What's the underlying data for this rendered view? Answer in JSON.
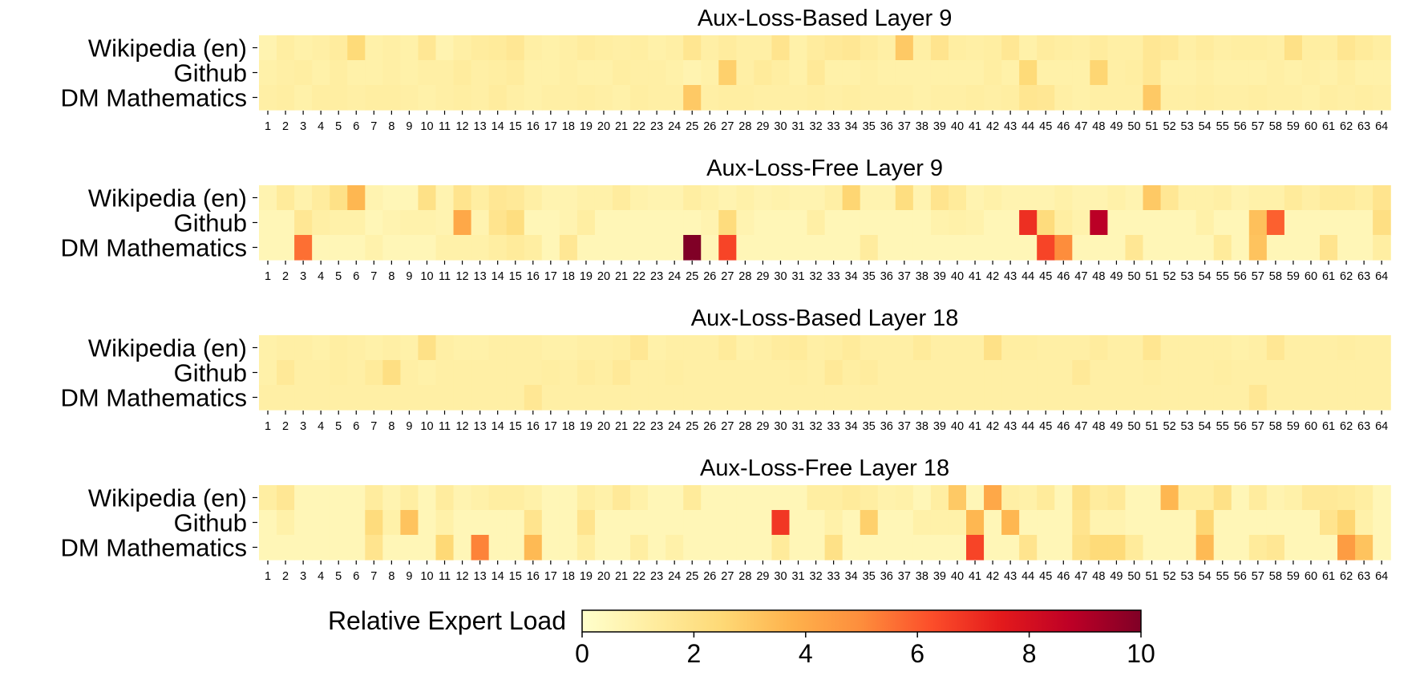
{
  "chart_data": [
    {
      "type": "heatmap",
      "title": "Aux-Loss-Based Layer 9",
      "rows": [
        "Wikipedia (en)",
        "Github",
        "DM Mathematics"
      ],
      "columns": [
        "1",
        "2",
        "3",
        "4",
        "5",
        "6",
        "7",
        "8",
        "9",
        "10",
        "11",
        "12",
        "13",
        "14",
        "15",
        "16",
        "17",
        "18",
        "19",
        "20",
        "21",
        "22",
        "23",
        "24",
        "25",
        "26",
        "27",
        "28",
        "29",
        "30",
        "31",
        "32",
        "33",
        "34",
        "35",
        "36",
        "37",
        "38",
        "39",
        "40",
        "41",
        "42",
        "43",
        "44",
        "45",
        "46",
        "47",
        "48",
        "49",
        "50",
        "51",
        "52",
        "53",
        "54",
        "55",
        "56",
        "57",
        "58",
        "59",
        "60",
        "61",
        "62",
        "63",
        "64"
      ],
      "values": [
        [
          0.8,
          1.2,
          1.0,
          1.1,
          1.3,
          2.4,
          1.0,
          1.1,
          1.0,
          1.6,
          0.8,
          1.1,
          1.3,
          1.4,
          1.6,
          1.1,
          1.0,
          1.1,
          1.3,
          1.2,
          1.1,
          1.2,
          1.0,
          1.1,
          1.7,
          1.1,
          1.3,
          1.1,
          1.1,
          1.8,
          1.0,
          1.3,
          1.5,
          1.6,
          1.3,
          1.1,
          3.0,
          1.1,
          1.8,
          1.2,
          1.1,
          1.2,
          1.6,
          1.0,
          1.3,
          1.2,
          1.1,
          1.3,
          1.1,
          1.1,
          1.6,
          1.5,
          1.1,
          1.3,
          1.1,
          1.2,
          1.2,
          1.1,
          2.0,
          1.2,
          1.2,
          1.7,
          1.4,
          1.2
        ],
        [
          1.0,
          1.1,
          1.2,
          1.0,
          1.2,
          1.0,
          1.0,
          1.1,
          1.0,
          1.1,
          1.1,
          1.3,
          1.1,
          1.2,
          1.3,
          1.0,
          1.0,
          1.1,
          1.0,
          1.0,
          1.2,
          1.1,
          1.1,
          1.0,
          0.8,
          1.0,
          2.8,
          1.1,
          1.4,
          1.2,
          1.0,
          1.5,
          1.0,
          1.0,
          1.1,
          1.0,
          1.0,
          1.0,
          1.0,
          1.0,
          1.0,
          1.2,
          1.0,
          2.4,
          1.0,
          1.0,
          1.0,
          2.6,
          1.1,
          1.2,
          1.6,
          1.0,
          1.0,
          1.1,
          1.0,
          1.0,
          1.0,
          1.1,
          1.0,
          1.1,
          1.0,
          1.2,
          1.0,
          1.0
        ],
        [
          1.1,
          1.2,
          1.0,
          1.2,
          1.2,
          1.1,
          1.2,
          1.2,
          1.1,
          1.0,
          1.1,
          1.2,
          1.1,
          1.3,
          1.1,
          1.0,
          1.1,
          1.1,
          1.2,
          1.1,
          1.0,
          1.2,
          1.1,
          1.1,
          3.0,
          1.1,
          1.2,
          1.2,
          1.1,
          1.1,
          1.1,
          1.2,
          1.1,
          1.2,
          1.1,
          1.1,
          1.1,
          1.0,
          1.1,
          1.1,
          1.2,
          1.1,
          1.2,
          1.7,
          1.6,
          1.1,
          1.0,
          1.1,
          1.1,
          1.1,
          3.0,
          1.1,
          1.1,
          1.2,
          1.1,
          1.1,
          1.2,
          1.1,
          1.1,
          1.0,
          1.2,
          1.1,
          1.2,
          1.1
        ]
      ],
      "xlabel": "",
      "ylabel": "",
      "color_range": [
        0,
        10
      ]
    },
    {
      "type": "heatmap",
      "title": "Aux-Loss-Free Layer 9",
      "rows": [
        "Wikipedia (en)",
        "Github",
        "DM Mathematics"
      ],
      "columns": [
        "1",
        "2",
        "3",
        "4",
        "5",
        "6",
        "7",
        "8",
        "9",
        "10",
        "11",
        "12",
        "13",
        "14",
        "15",
        "16",
        "17",
        "18",
        "19",
        "20",
        "21",
        "22",
        "23",
        "24",
        "25",
        "26",
        "27",
        "28",
        "29",
        "30",
        "31",
        "32",
        "33",
        "34",
        "35",
        "36",
        "37",
        "38",
        "39",
        "40",
        "41",
        "42",
        "43",
        "44",
        "45",
        "46",
        "47",
        "48",
        "49",
        "50",
        "51",
        "52",
        "53",
        "54",
        "55",
        "56",
        "57",
        "58",
        "59",
        "60",
        "61",
        "62",
        "63",
        "64"
      ],
      "values": [
        [
          0.8,
          1.4,
          0.9,
          1.3,
          2.0,
          3.6,
          0.8,
          0.6,
          0.6,
          2.0,
          0.8,
          1.8,
          1.2,
          1.6,
          1.5,
          1.1,
          0.8,
          0.8,
          1.0,
          1.0,
          1.3,
          0.9,
          0.8,
          0.8,
          1.2,
          1.0,
          0.8,
          1.0,
          0.8,
          0.9,
          0.8,
          0.8,
          1.1,
          2.6,
          0.8,
          0.8,
          2.2,
          0.8,
          1.8,
          1.4,
          0.8,
          1.0,
          0.8,
          0.8,
          0.8,
          1.0,
          0.8,
          0.8,
          1.0,
          0.8,
          3.0,
          1.6,
          1.0,
          1.0,
          1.1,
          0.8,
          1.0,
          1.0,
          1.4,
          1.1,
          1.4,
          1.4,
          1.2,
          1.8
        ],
        [
          0.6,
          0.6,
          1.6,
          1.1,
          1.0,
          1.0,
          0.6,
          0.8,
          0.9,
          0.9,
          0.8,
          4.1,
          0.8,
          1.8,
          2.2,
          0.6,
          0.6,
          0.8,
          1.2,
          0.6,
          0.6,
          0.6,
          0.6,
          0.6,
          0.6,
          0.8,
          2.3,
          0.8,
          0.6,
          0.6,
          0.6,
          1.1,
          0.6,
          0.6,
          0.6,
          0.6,
          0.6,
          0.6,
          0.9,
          1.0,
          0.9,
          0.6,
          0.6,
          7.0,
          2.3,
          1.2,
          0.9,
          8.8,
          0.6,
          0.6,
          0.6,
          0.6,
          0.6,
          1.0,
          0.6,
          0.6,
          3.3,
          5.9,
          0.6,
          0.6,
          0.6,
          0.6,
          0.6,
          2.1
        ],
        [
          0.6,
          0.6,
          5.6,
          0.6,
          0.6,
          0.6,
          0.9,
          0.6,
          0.6,
          0.6,
          1.0,
          1.0,
          1.0,
          1.2,
          1.4,
          1.2,
          0.6,
          1.6,
          0.6,
          0.6,
          0.6,
          0.6,
          0.6,
          0.6,
          10.0,
          0.6,
          6.5,
          0.6,
          0.6,
          0.6,
          0.6,
          0.6,
          0.6,
          0.6,
          1.3,
          0.6,
          0.6,
          0.6,
          0.6,
          0.6,
          0.6,
          0.6,
          0.6,
          0.6,
          6.5,
          5.0,
          0.6,
          0.6,
          0.6,
          1.6,
          0.6,
          0.6,
          0.6,
          0.6,
          1.4,
          0.6,
          3.2,
          0.6,
          0.6,
          0.6,
          1.8,
          0.6,
          0.6,
          1.2
        ]
      ],
      "xlabel": "",
      "ylabel": "",
      "color_range": [
        0,
        10
      ]
    },
    {
      "type": "heatmap",
      "title": "Aux-Loss-Based Layer 18",
      "rows": [
        "Wikipedia (en)",
        "Github",
        "DM Mathematics"
      ],
      "columns": [
        "1",
        "2",
        "3",
        "4",
        "5",
        "6",
        "7",
        "8",
        "9",
        "10",
        "11",
        "12",
        "13",
        "14",
        "15",
        "16",
        "17",
        "18",
        "19",
        "20",
        "21",
        "22",
        "23",
        "24",
        "25",
        "26",
        "27",
        "28",
        "29",
        "30",
        "31",
        "32",
        "33",
        "34",
        "35",
        "36",
        "37",
        "38",
        "39",
        "40",
        "41",
        "42",
        "43",
        "44",
        "45",
        "46",
        "47",
        "48",
        "49",
        "50",
        "51",
        "52",
        "53",
        "54",
        "55",
        "56",
        "57",
        "58",
        "59",
        "60",
        "61",
        "62",
        "63",
        "64"
      ],
      "values": [
        [
          1.0,
          1.1,
          1.1,
          1.0,
          1.2,
          1.1,
          1.0,
          1.1,
          1.0,
          2.0,
          1.1,
          1.0,
          1.0,
          1.1,
          1.1,
          1.1,
          1.0,
          1.0,
          1.1,
          1.1,
          1.2,
          1.6,
          1.0,
          1.1,
          1.1,
          1.1,
          1.4,
          1.0,
          1.1,
          1.3,
          1.4,
          1.1,
          1.2,
          1.4,
          1.1,
          1.1,
          1.1,
          1.4,
          1.1,
          1.1,
          1.1,
          2.0,
          1.2,
          1.2,
          1.1,
          1.1,
          1.1,
          1.3,
          1.1,
          1.1,
          1.7,
          1.1,
          1.1,
          1.1,
          1.1,
          1.0,
          1.1,
          1.6,
          1.1,
          1.1,
          1.1,
          1.2,
          1.1,
          1.1
        ],
        [
          1.0,
          1.5,
          1.1,
          1.1,
          1.2,
          1.1,
          1.4,
          2.1,
          1.1,
          1.0,
          1.1,
          1.1,
          1.1,
          1.1,
          1.1,
          1.1,
          1.2,
          1.1,
          1.3,
          1.2,
          1.5,
          1.1,
          1.1,
          1.2,
          1.1,
          1.1,
          1.1,
          1.1,
          1.1,
          1.1,
          1.2,
          1.1,
          1.5,
          1.2,
          1.3,
          1.1,
          1.1,
          1.1,
          1.1,
          1.1,
          1.1,
          1.1,
          1.1,
          1.1,
          1.1,
          1.1,
          1.5,
          1.1,
          1.1,
          1.1,
          1.2,
          1.1,
          1.1,
          1.1,
          1.2,
          1.1,
          1.1,
          1.1,
          1.1,
          1.1,
          1.1,
          1.1,
          1.1,
          1.1
        ],
        [
          1.1,
          1.1,
          1.1,
          1.1,
          1.1,
          1.1,
          1.1,
          1.1,
          1.1,
          1.1,
          1.1,
          1.1,
          1.1,
          1.1,
          1.1,
          1.6,
          1.1,
          1.1,
          1.1,
          1.1,
          1.1,
          1.1,
          1.1,
          1.1,
          1.1,
          1.1,
          1.1,
          1.1,
          1.1,
          1.1,
          1.1,
          1.1,
          1.1,
          1.1,
          1.1,
          1.1,
          1.1,
          1.1,
          1.1,
          1.1,
          1.1,
          1.1,
          1.1,
          1.1,
          1.1,
          1.1,
          1.1,
          1.1,
          1.1,
          1.1,
          1.1,
          1.1,
          1.1,
          1.1,
          1.1,
          1.1,
          1.6,
          1.1,
          1.1,
          1.1,
          1.1,
          1.1,
          1.1,
          1.1
        ]
      ],
      "xlabel": "",
      "ylabel": "",
      "color_range": [
        0,
        10
      ]
    },
    {
      "type": "heatmap",
      "title": "Aux-Loss-Free Layer 18",
      "rows": [
        "Wikipedia (en)",
        "Github",
        "DM Mathematics"
      ],
      "columns": [
        "1",
        "2",
        "3",
        "4",
        "5",
        "6",
        "7",
        "8",
        "9",
        "10",
        "11",
        "12",
        "13",
        "14",
        "15",
        "16",
        "17",
        "18",
        "19",
        "20",
        "21",
        "22",
        "23",
        "24",
        "25",
        "26",
        "27",
        "28",
        "29",
        "30",
        "31",
        "32",
        "33",
        "34",
        "35",
        "36",
        "37",
        "38",
        "39",
        "40",
        "41",
        "42",
        "43",
        "44",
        "45",
        "46",
        "47",
        "48",
        "49",
        "50",
        "51",
        "52",
        "53",
        "54",
        "55",
        "56",
        "57",
        "58",
        "59",
        "60",
        "61",
        "62",
        "63",
        "64"
      ],
      "values": [
        [
          1.2,
          1.6,
          0.6,
          0.6,
          0.6,
          0.6,
          1.3,
          0.8,
          1.2,
          0.6,
          1.3,
          0.8,
          1.0,
          1.2,
          1.2,
          1.0,
          0.6,
          0.6,
          1.2,
          1.0,
          1.5,
          1.0,
          0.6,
          0.6,
          1.4,
          0.6,
          0.6,
          0.6,
          0.6,
          0.6,
          0.6,
          1.2,
          1.2,
          1.4,
          1.2,
          0.9,
          1.0,
          0.6,
          1.2,
          3.0,
          0.6,
          4.1,
          1.1,
          1.0,
          1.4,
          0.6,
          2.0,
          1.3,
          1.5,
          0.6,
          0.6,
          3.6,
          1.2,
          1.2,
          2.0,
          0.6,
          1.3,
          0.8,
          1.0,
          1.5,
          1.5,
          1.4,
          1.2,
          0.6
        ],
        [
          0.6,
          1.0,
          0.6,
          0.6,
          0.6,
          0.6,
          2.3,
          1.0,
          3.2,
          0.6,
          1.0,
          0.6,
          0.6,
          0.6,
          0.6,
          1.8,
          0.6,
          0.6,
          1.8,
          0.6,
          0.6,
          0.6,
          0.6,
          0.6,
          0.6,
          0.6,
          0.6,
          0.6,
          0.6,
          6.8,
          0.6,
          0.6,
          1.0,
          0.6,
          2.8,
          0.6,
          0.6,
          1.0,
          1.0,
          1.0,
          3.6,
          0.6,
          3.6,
          0.6,
          0.6,
          0.6,
          1.8,
          0.8,
          0.8,
          0.6,
          0.6,
          0.6,
          0.6,
          2.6,
          0.6,
          0.6,
          0.6,
          0.6,
          0.6,
          0.6,
          1.8,
          2.6,
          1.0,
          0.6
        ],
        [
          0.6,
          0.6,
          0.6,
          0.6,
          0.6,
          0.6,
          1.8,
          0.6,
          0.6,
          0.6,
          2.5,
          0.6,
          5.2,
          0.6,
          0.6,
          3.5,
          0.6,
          0.6,
          1.2,
          0.6,
          0.6,
          1.2,
          0.6,
          1.0,
          0.6,
          0.6,
          0.6,
          0.6,
          0.6,
          1.4,
          0.6,
          0.6,
          2.0,
          0.6,
          0.6,
          0.6,
          0.6,
          0.6,
          0.6,
          0.6,
          6.5,
          0.6,
          0.6,
          1.8,
          0.6,
          0.6,
          2.0,
          2.4,
          2.4,
          1.4,
          0.6,
          0.6,
          0.6,
          3.5,
          0.6,
          0.6,
          1.4,
          1.6,
          0.6,
          0.6,
          0.6,
          4.5,
          3.2,
          0.6
        ]
      ],
      "xlabel": "",
      "ylabel": "",
      "color_range": [
        0,
        10
      ]
    }
  ],
  "colorbar": {
    "label": "Relative Expert Load",
    "ticks": [
      "0",
      "2",
      "4",
      "6",
      "8",
      "10"
    ],
    "range": [
      0,
      10
    ],
    "colormap": "YlOrRd",
    "stops": [
      "#ffffcc",
      "#ffeda0",
      "#fed976",
      "#feb24c",
      "#fd8d3c",
      "#fc4e2a",
      "#e31a1c",
      "#bd0026",
      "#800026"
    ]
  }
}
